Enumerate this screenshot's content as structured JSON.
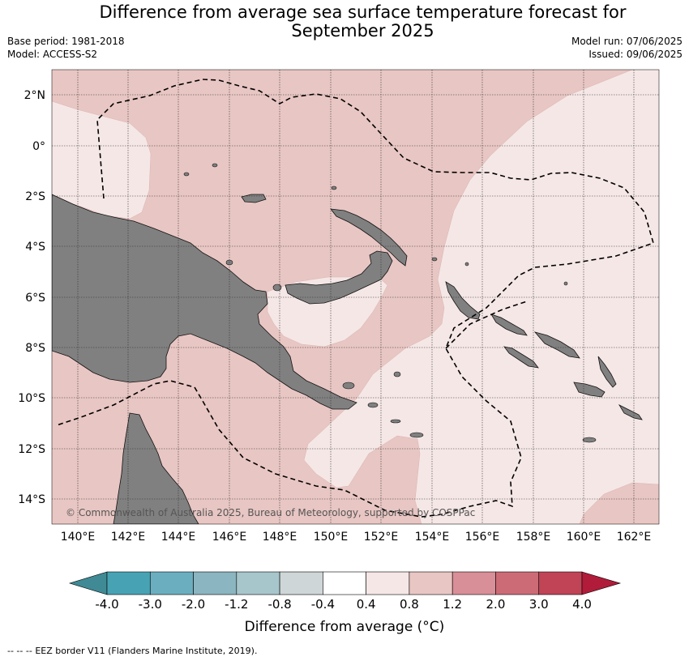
{
  "title": "Difference from average sea surface temperature forecast for September 2025",
  "title_line1": "Difference from average sea surface temperature forecast for",
  "title_line2": "September 2025",
  "base_period": "Base period: 1981-2018",
  "model": "Model: ACCESS-S2",
  "model_run": "Model run: 07/06/2025",
  "issued": "Issued: 09/06/2025",
  "copyright": "© Commonwealth of Australia 2025, Bureau of Meteorology, supported by COSPPac",
  "lat_labels": [
    "2°N",
    "0°",
    "2°S",
    "4°S",
    "6°S",
    "8°S",
    "10°S",
    "12°S",
    "14°S"
  ],
  "lon_labels": [
    "140°E",
    "142°E",
    "144°E",
    "146°E",
    "148°E",
    "150°E",
    "152°E",
    "154°E",
    "156°E",
    "158°E",
    "160°E",
    "162°E"
  ],
  "colorbar": {
    "ticks": [
      "-4.0",
      "-3.0",
      "-2.0",
      "-1.2",
      "-0.8",
      "-0.4",
      "0.4",
      "0.8",
      "1.2",
      "2.0",
      "3.0",
      "4.0"
    ],
    "colors": [
      "#3f8a95",
      "#47a3b3",
      "#6baebf",
      "#8bb5c0",
      "#a7c6cb",
      "#cfd6d7",
      "#ffffff",
      "#f5e7e6",
      "#e8c6c3",
      "#d98f98",
      "#cc6b76",
      "#c04456",
      "#b01c3a"
    ],
    "label": "Difference from average (°C)"
  },
  "legend": {
    "marker": "-- -- --",
    "text": "EEZ border V11 (Flanders Marine Institute, 2019)."
  },
  "colors": {
    "warm_light": "#f5e7e6",
    "warm_medium": "#e8c6c3",
    "land": "#808080"
  }
}
